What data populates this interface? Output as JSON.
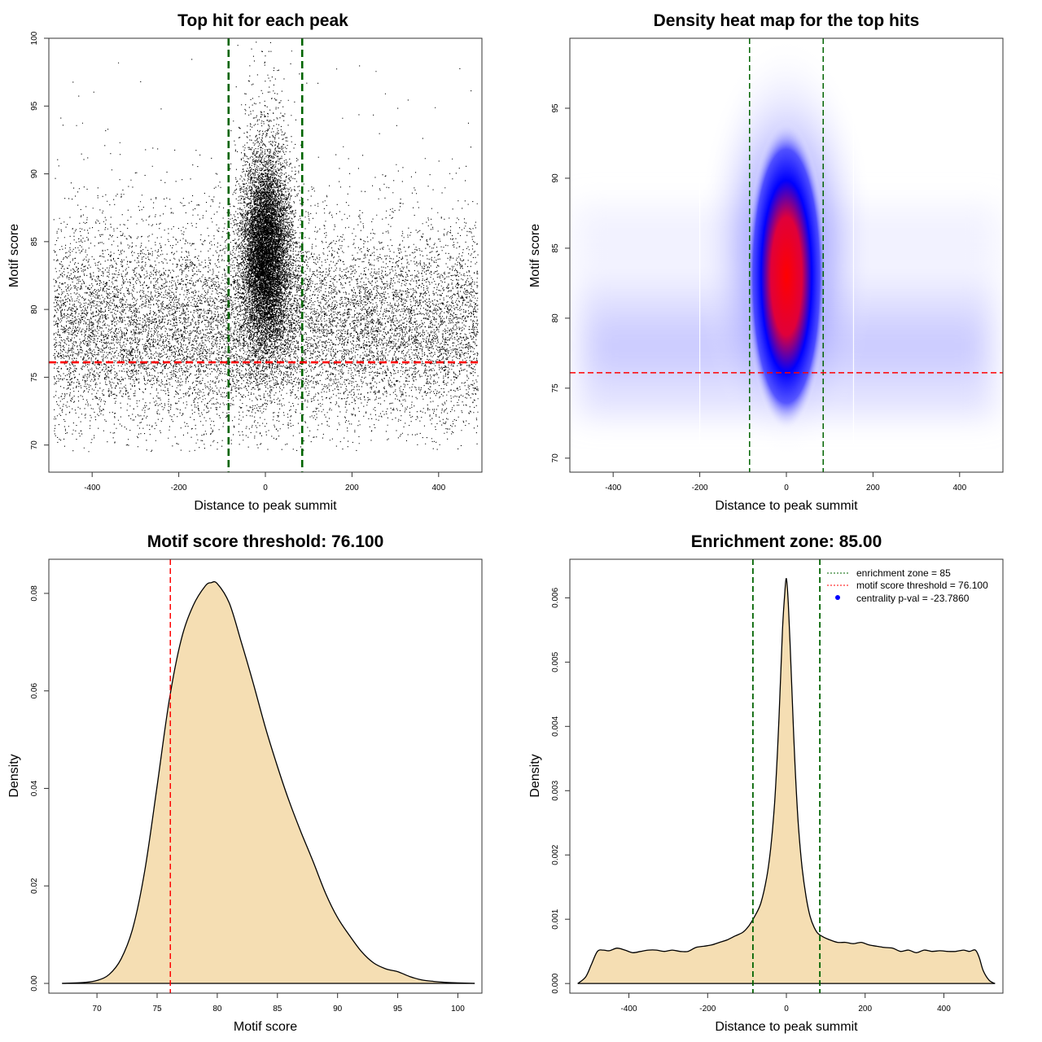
{
  "chart_data": [
    {
      "type": "scatter",
      "title": "Top hit for each peak",
      "xlabel": "Distance to peak summit",
      "ylabel": "Motif score",
      "xlim": [
        -500,
        500
      ],
      "ylim": [
        68,
        100
      ],
      "x_ticks": [
        -400,
        -200,
        0,
        200,
        400
      ],
      "y_ticks": [
        70,
        75,
        80,
        85,
        90,
        95,
        100
      ],
      "marker_color": "#000000",
      "point_count_estimate": 24000,
      "vertical_lines": [
        {
          "x": -85,
          "color": "#006400",
          "style": "dashed"
        },
        {
          "x": 85,
          "color": "#006400",
          "style": "dashed"
        }
      ],
      "horizontal_lines": [
        {
          "y": 76.1,
          "color": "#ff0000",
          "style": "dashed"
        }
      ],
      "distribution": {
        "background": {
          "x_range": [
            -490,
            490
          ],
          "score_center": 78.5,
          "score_spread": 3.6
        },
        "central": {
          "x_center": 0,
          "x_spread": 22,
          "score_center": 84,
          "score_spread": 3.5
        }
      }
    },
    {
      "type": "heatmap",
      "title": "Density heat map for the top hits",
      "xlabel": "Distance to peak summit",
      "ylabel": "Motif score",
      "xlim": [
        -500,
        500
      ],
      "ylim": [
        69,
        100
      ],
      "x_ticks": [
        -400,
        -200,
        0,
        200,
        400
      ],
      "y_ticks": [
        70,
        75,
        80,
        85,
        90,
        95
      ],
      "color_scale": [
        "#ffffff",
        "#0000ff",
        "#ff0000"
      ],
      "vertical_lines": [
        {
          "x": -85,
          "color": "#006400",
          "style": "dashed"
        },
        {
          "x": 85,
          "color": "#006400",
          "style": "dashed"
        }
      ],
      "horizontal_lines": [
        {
          "y": 76.1,
          "color": "#ff0000",
          "style": "dashed"
        }
      ],
      "hotspot": {
        "x": 0,
        "y": 83
      }
    },
    {
      "type": "area",
      "title": "Motif score threshold: 76.100",
      "xlabel": "Motif score",
      "ylabel": "Density",
      "xlim": [
        66,
        102
      ],
      "ylim": [
        -0.002,
        0.087
      ],
      "x_ticks": [
        70,
        75,
        80,
        85,
        90,
        95,
        100
      ],
      "y_ticks": [
        0.0,
        0.02,
        0.04,
        0.06,
        0.08
      ],
      "y_tick_labels": [
        "0.00",
        "0.02",
        "0.04",
        "0.06",
        "0.08"
      ],
      "fill_color": "#f5deb3",
      "line_color": "#000000",
      "x": [
        67.1,
        69,
        70,
        71,
        72,
        73,
        74,
        75,
        76,
        77,
        78,
        79,
        79.5,
        80,
        81,
        82,
        83,
        84,
        85,
        86,
        87,
        88,
        89,
        90,
        91,
        92,
        93,
        94,
        95,
        96,
        97,
        98,
        99,
        100,
        101.4
      ],
      "y": [
        0.0,
        0.0002,
        0.0006,
        0.0018,
        0.005,
        0.0115,
        0.0235,
        0.0405,
        0.058,
        0.0705,
        0.0775,
        0.0815,
        0.0822,
        0.082,
        0.078,
        0.07,
        0.0615,
        0.0525,
        0.0445,
        0.0372,
        0.0308,
        0.0248,
        0.0185,
        0.0135,
        0.0098,
        0.0065,
        0.0042,
        0.003,
        0.0024,
        0.0014,
        0.0007,
        0.0004,
        0.0002,
        0.0001,
        0.0
      ],
      "vertical_lines": [
        {
          "x": 76.1,
          "color": "#ff0000",
          "style": "dashed"
        }
      ]
    },
    {
      "type": "area",
      "title": "Enrichment zone: 85.00",
      "xlabel": "Distance to peak summit",
      "ylabel": "Density",
      "xlim": [
        -550,
        550
      ],
      "ylim": [
        -0.00015,
        0.0066
      ],
      "x_ticks": [
        -400,
        -200,
        0,
        200,
        400
      ],
      "y_ticks": [
        0.0,
        0.001,
        0.002,
        0.003,
        0.004,
        0.005,
        0.006
      ],
      "y_tick_labels": [
        "0.000",
        "0.001",
        "0.002",
        "0.003",
        "0.004",
        "0.005",
        "0.006"
      ],
      "fill_color": "#f5deb3",
      "line_color": "#000000",
      "x": [
        -530,
        -510,
        -495,
        -480,
        -465,
        -450,
        -430,
        -410,
        -390,
        -370,
        -350,
        -330,
        -310,
        -290,
        -270,
        -250,
        -230,
        -210,
        -190,
        -170,
        -150,
        -130,
        -110,
        -95,
        -80,
        -65,
        -50,
        -40,
        -30,
        -22,
        -15,
        -10,
        -5,
        0,
        5,
        10,
        15,
        22,
        30,
        40,
        50,
        60,
        70,
        80,
        95,
        110,
        130,
        150,
        170,
        190,
        210,
        230,
        250,
        270,
        290,
        310,
        330,
        350,
        370,
        390,
        410,
        430,
        450,
        465,
        480,
        490,
        500,
        515,
        530
      ],
      "y": [
        0.0,
        0.0001,
        0.0003,
        0.0005,
        0.00052,
        0.00051,
        0.00055,
        0.00052,
        0.00048,
        0.0005,
        0.00052,
        0.00052,
        0.0005,
        0.00052,
        0.0005,
        0.0005,
        0.00056,
        0.00058,
        0.0006,
        0.00064,
        0.00068,
        0.00074,
        0.0008,
        0.0009,
        0.00105,
        0.00125,
        0.00165,
        0.0021,
        0.0028,
        0.0037,
        0.0047,
        0.0055,
        0.006,
        0.0063,
        0.0059,
        0.0052,
        0.0044,
        0.0034,
        0.0025,
        0.0018,
        0.00135,
        0.00105,
        0.00088,
        0.00078,
        0.00072,
        0.00068,
        0.00064,
        0.00064,
        0.00062,
        0.00064,
        0.0006,
        0.00058,
        0.00056,
        0.00055,
        0.0005,
        0.00052,
        0.00048,
        0.00052,
        0.0005,
        0.00051,
        0.0005,
        0.0005,
        0.00052,
        0.0005,
        0.00052,
        0.0004,
        0.0002,
        5e-05,
        0.0
      ],
      "vertical_lines": [
        {
          "x": -85,
          "color": "#006400",
          "style": "dashed"
        },
        {
          "x": 85,
          "color": "#006400",
          "style": "dashed"
        }
      ],
      "legend": {
        "position": "top-right",
        "entries": [
          {
            "label": "enrichment zone = 85",
            "color": "#006400",
            "marker": "dotted-line"
          },
          {
            "label": "motif score threshold = 76.100",
            "color": "#ff0000",
            "marker": "dotted-line"
          },
          {
            "label": "centrality p-val = -23.7860",
            "color": "#0000ff",
            "marker": "dot"
          }
        ]
      }
    }
  ]
}
